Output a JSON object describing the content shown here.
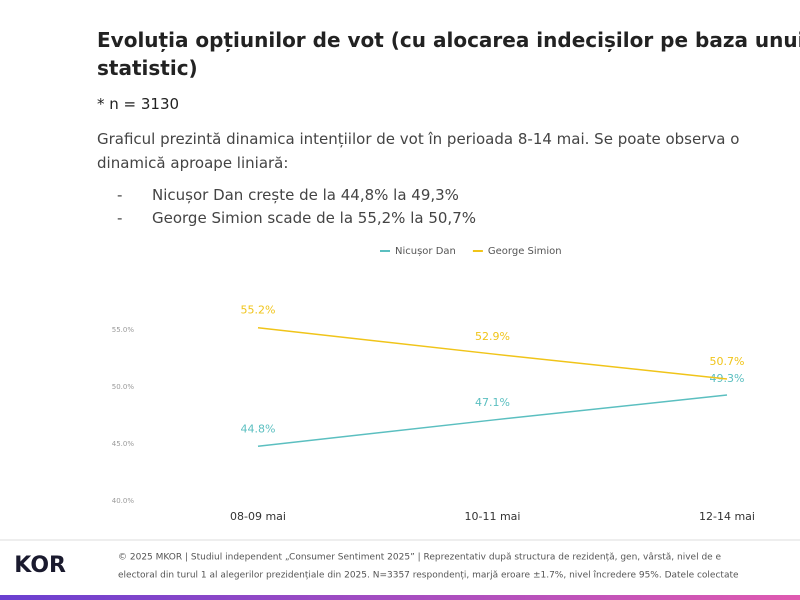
{
  "title": [
    "Evoluția opțiunilor de vot (cu alocarea indecișilor pe baza unui m",
    "statistic)"
  ],
  "note": "* n = 3130",
  "description": [
    "Graficul prezintă dinamica intențiilor de vot în perioada 8-14 mai. Se poate observa o",
    "dinamică aproape liniară:"
  ],
  "bullets": [
    "Nicușor Dan crește de la 44,8% la 49,3%",
    "George Simion scade de la 55,2% la 50,7%"
  ],
  "chart_data": {
    "type": "line",
    "categories": [
      "08-09 mai",
      "10-11 mai",
      "12-14 mai"
    ],
    "series": [
      {
        "name": "Nicușor Dan",
        "color": "#5bbfc0",
        "values": [
          44.8,
          47.1,
          49.3
        ],
        "value_labels": [
          "44.8%",
          "47.1%",
          "49.3%"
        ]
      },
      {
        "name": "George Simion",
        "color": "#f0c419",
        "values": [
          55.2,
          52.9,
          50.7
        ],
        "value_labels": [
          "55.2%",
          "52.9%",
          "50.7%"
        ]
      }
    ],
    "ylim": [
      40,
      55
    ],
    "yticks": [
      {
        "value": 40,
        "label": "40.0%"
      },
      {
        "value": 45,
        "label": "45.0%"
      },
      {
        "value": 50,
        "label": "50.0%"
      },
      {
        "value": 55,
        "label": "55.0%"
      }
    ],
    "grid": false,
    "legend": "top"
  },
  "footer": [
    "© 2025 MKOR | Studiul independent „Consumer Sentiment 2025” | Reprezentativ după structura de rezidență, gen, vârstă, nivel de e",
    "electoral din turul 1 al alegerilor prezidențiale din 2025. N=3357 respondenți, marjă eroare ±1.7%, nivel încredere 95%. Datele colectate"
  ],
  "logo": "KOR"
}
